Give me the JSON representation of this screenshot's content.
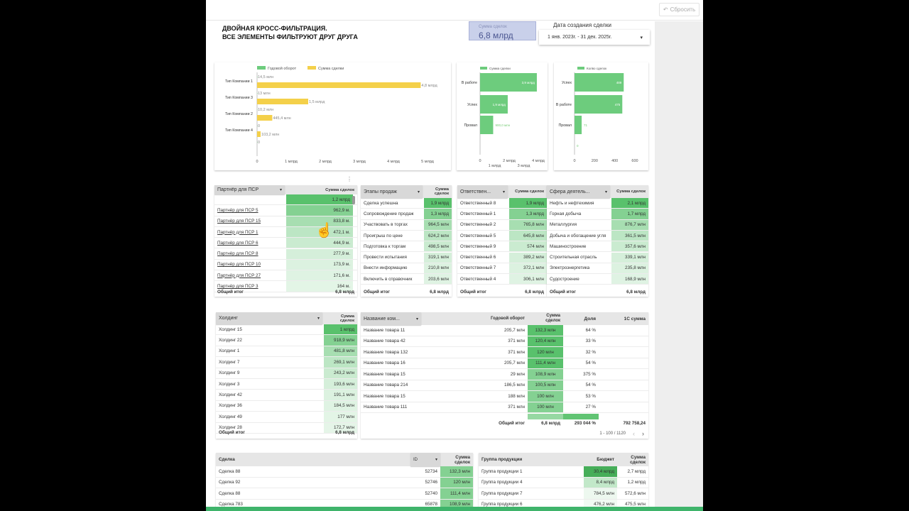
{
  "toolbar": {
    "reset_label": "Сбросить",
    "reset_icon": "undo-icon"
  },
  "header": {
    "title_line1": "ДВОЙНАЯ КРОСС-ФИЛЬТРАЦИЯ.",
    "title_line2": "ВСЕ ЭЛЕМЕНТЫ ФИЛЬТРУЮТ ДРУГ ДРУГА"
  },
  "kpi": {
    "label": "Сумма сделок",
    "value": "6,8 млрд"
  },
  "date_filter": {
    "label": "Дата создания сделки",
    "value": "1 янв. 2023г. - 31 дек. 2025г."
  },
  "colors": {
    "green": "#6dcc7d",
    "yellow": "#f4d04a",
    "accent_bar": "#3fb46b",
    "kpi_bg": "#c9d0ea"
  },
  "chart_data": [
    {
      "type": "bar",
      "orientation": "horizontal",
      "categories": [
        "Тип Компании 1",
        "Тип Компании 3",
        "Тип Компании 2",
        "Тип Компании 4",
        ""
      ],
      "series": [
        {
          "name": "Годовой оборот",
          "color": "#6dcc7d",
          "values": [
            0.0145,
            0.013,
            0.0102,
            0,
            0
          ],
          "labels": [
            "14,5 млн",
            "13 млн",
            "10,2 млн",
            "0",
            "0"
          ]
        },
        {
          "name": "Сумма сделки",
          "color": "#f4d04a",
          "values": [
            4.8,
            1.5,
            0.4454,
            0.1032,
            null
          ],
          "labels": [
            "4,8 млрд",
            "1,5 млрд",
            "445,4 млн",
            "103,2 млн",
            ""
          ]
        }
      ],
      "xticks": [
        "0",
        "1 млрд",
        "2 млрд",
        "3 млрд",
        "4 млрд",
        "5 млрд"
      ],
      "xlim": [
        0,
        5
      ],
      "legend": "top"
    },
    {
      "type": "bar",
      "orientation": "horizontal",
      "categories": [
        "В работе",
        "Успех",
        "Провал"
      ],
      "series": [
        {
          "name": "Сумма сделки",
          "color": "#6dcc7d",
          "values": [
            3.9,
            1.9,
            0.9
          ],
          "labels": [
            "3,9 млрд",
            "1,9 млрд",
            "900,0 млн"
          ]
        }
      ],
      "xticks": [
        "0",
        "1 млрд",
        "2 млрд",
        "3 млрд",
        "4 млрд"
      ],
      "xlim": [
        0,
        4
      ],
      "legend": "top"
    },
    {
      "type": "bar",
      "orientation": "horizontal",
      "categories": [
        "Успех",
        "В работе",
        "Провал",
        ""
      ],
      "series": [
        {
          "name": "Колво сделок",
          "color": "#6dcc7d",
          "values": [
            489,
            475,
            71,
            0
          ],
          "labels": [
            "489",
            "475",
            "71",
            "0"
          ]
        }
      ],
      "xticks": [
        "0",
        "200",
        "400",
        "600"
      ],
      "xlim": [
        0,
        650
      ],
      "legend": "top"
    }
  ],
  "tables": {
    "partner": {
      "header": "Партнёр для ПСР",
      "value_header": "Сумма сделок",
      "total_label": "Общий итог",
      "total": "6,8 млрд",
      "rows": [
        [
          "",
          "1,2 млрд"
        ],
        [
          "Партнёр для ПСР 5",
          "962,9 м."
        ],
        [
          "Партнёр для ПСР 15",
          "833,8 м."
        ],
        [
          "Партнёр для ПСР 1",
          "472,1 м."
        ],
        [
          "Партнёр для ПСР 6",
          "444,9 м."
        ],
        [
          "Партнёр для ПСР 8",
          "277,9 м."
        ],
        [
          "Партнёр для ПСР 10",
          "173,9 м."
        ],
        [
          "Партнёр для ПСР 27",
          "171,6 м."
        ],
        [
          "Партнёр для ПСР 3",
          "164 м."
        ]
      ]
    },
    "stages": {
      "header": "Этапы продаж",
      "value_header": "Сумма сделок",
      "total_label": "Общий итог",
      "total": "6,8 млрд",
      "rows": [
        [
          "Сделка успешна",
          "1,9 млрд"
        ],
        [
          "Сопровождение продаж",
          "1,3 млрд"
        ],
        [
          "Участвовать в торгах",
          "964,5 млн"
        ],
        [
          "Проигрыш по цене",
          "624,2 млн"
        ],
        [
          "Подготовка к торгам",
          "498,5 млн"
        ],
        [
          "Провести испытания",
          "319,1 млн"
        ],
        [
          "Внести информацию",
          "210,8 млн"
        ],
        [
          "Включить в справочник",
          "203,6 млн"
        ]
      ]
    },
    "responsible": {
      "header": "Ответствен...",
      "value_header": "Сумма сделок",
      "total_label": "Общий итог",
      "total": "6,8 млрд",
      "rows": [
        [
          "Ответственный 8",
          "1,9 млрд"
        ],
        [
          "Ответственный 1",
          "1,3 млрд"
        ],
        [
          "Ответственный 2",
          "765,8 млн"
        ],
        [
          "Ответственный 5",
          "645,8 млн"
        ],
        [
          "Ответственный 9",
          "574 млн"
        ],
        [
          "Ответственный 6",
          "389,2 млн"
        ],
        [
          "Ответственный 7",
          "372,1 млн"
        ],
        [
          "Ответственный 4",
          "306,1 млн"
        ]
      ]
    },
    "sphere": {
      "header": "Сфера деятель...",
      "value_header": "Сумма сделок",
      "total_label": "Общий итог",
      "total": "6,8 млрд",
      "rows": [
        [
          "Нефть и нефтехимия",
          "2,1 млрд"
        ],
        [
          "Горная добыча",
          "1,7 млрд"
        ],
        [
          "Металлургия",
          "876,7 млн"
        ],
        [
          "Добыча и обогащение угля",
          "361,5 млн"
        ],
        [
          "Машиностроение",
          "357,6 млн"
        ],
        [
          "Строительная отрасль",
          "339,1 млн"
        ],
        [
          "Электроэнергетика",
          "235,8 млн"
        ],
        [
          "Судостроение",
          "168,9 млн"
        ]
      ]
    },
    "holding": {
      "header": "Холдинг",
      "value_header": "Сумма сделок",
      "total_label": "Общий итог",
      "total": "6,8 млрд",
      "rows": [
        [
          "Холдинг 15",
          "1 млрд"
        ],
        [
          "Холдинг 22",
          "918,9 млн"
        ],
        [
          "Холдинг 1",
          "481,8 млн"
        ],
        [
          "Холдинг 7",
          "269,1 млн"
        ],
        [
          "Холдинг 9",
          "243,2 млн"
        ],
        [
          "Холдинг 3",
          "193,6 млн"
        ],
        [
          "Холдинг 42",
          "191,1 млн"
        ],
        [
          "Холдинг 36",
          "184,5 млн"
        ],
        [
          "Холдинг 49",
          "177 млн"
        ],
        [
          "Холдинг 28",
          "172,7 млн"
        ]
      ]
    },
    "products": {
      "header": "Название ком...",
      "columns": [
        "Годовой оборот",
        "Сумма сделок",
        "Доля",
        "1С сумма"
      ],
      "rows": [
        [
          "Название товара 11",
          "205,7 млн",
          "132,3 млн",
          "64 %",
          ""
        ],
        [
          "Название товара 42",
          "371 млн",
          "120,4 млн",
          "33 %",
          ""
        ],
        [
          "Название товара 132",
          "371 млн",
          "120 млн",
          "32 %",
          ""
        ],
        [
          "Название товара 16",
          "205,7 млн",
          "111,4 млн",
          "54 %",
          ""
        ],
        [
          "Название товара 15",
          "29 млн",
          "108,9 млн",
          "375 %",
          ""
        ],
        [
          "Название товара 214",
          "186,5 млн",
          "100,5 млн",
          "54 %",
          ""
        ],
        [
          "Название товара 15",
          "188 млн",
          "100 млн",
          "53 %",
          ""
        ],
        [
          "Название товара 111",
          "371 млн",
          "100 млн",
          "27 %",
          ""
        ]
      ],
      "total_label": "Общий итог",
      "totals": [
        "",
        "6,8 млрд",
        "293 044 %",
        "792 758,24"
      ],
      "pager": "1 - 100 / 1120"
    },
    "deals": {
      "header": "Сделка",
      "id_header": "ID",
      "value_header": "Сумма сделок",
      "rows": [
        [
          "Сделка 88",
          "52734",
          "132,3 млн"
        ],
        [
          "Сделка 92",
          "52746",
          "120 млн"
        ],
        [
          "Сделка 88",
          "52740",
          "111,4 млн"
        ],
        [
          "Сделка 783",
          "65878",
          "108,9 млн"
        ]
      ]
    },
    "groups": {
      "header": "Группа продукции",
      "columns": [
        "Бюджет",
        "Сумма сделок"
      ],
      "rows": [
        [
          "Группа продукции 1",
          "30,4 млрд",
          "2,7 млрд"
        ],
        [
          "Группа продукции 4",
          "8,4 млрд",
          "1,2 млрд"
        ],
        [
          "Группа продукции 7",
          "784,5 млн",
          "572,6 млн"
        ],
        [
          "Группа продукции 6",
          "476,2 млн",
          "475,5 млн"
        ]
      ]
    }
  }
}
